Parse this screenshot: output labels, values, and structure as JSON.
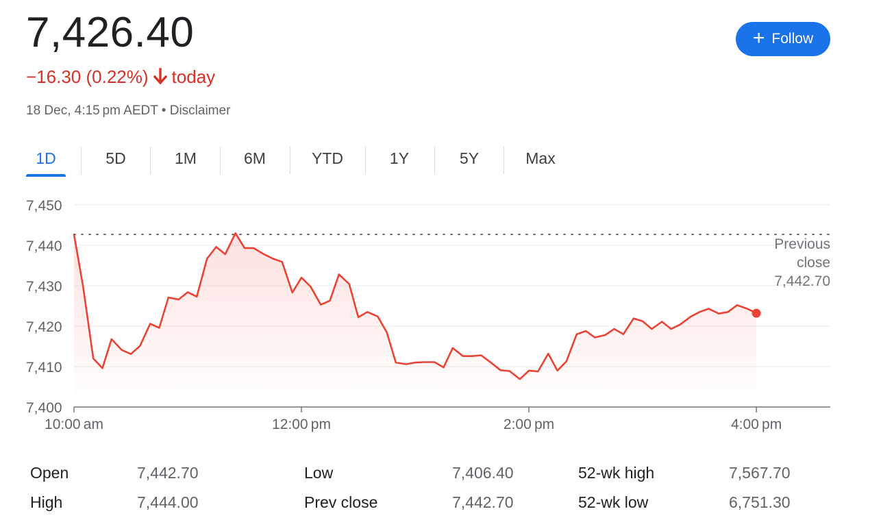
{
  "header": {
    "price": "7,426.40",
    "change": "−16.30 (0.22%)",
    "change_suffix": "today",
    "timestamp": "18 Dec, 4:15 pm AEDT",
    "separator": "•",
    "disclaimer": "Disclaimer",
    "negative_color": "#d93025"
  },
  "follow_button": {
    "label": "Follow",
    "icon": "plus-icon",
    "color": "#1a73e8"
  },
  "tabs": [
    {
      "label": "1D",
      "active": true
    },
    {
      "label": "5D",
      "active": false
    },
    {
      "label": "1M",
      "active": false
    },
    {
      "label": "6M",
      "active": false
    },
    {
      "label": "YTD",
      "active": false
    },
    {
      "label": "1Y",
      "active": false
    },
    {
      "label": "5Y",
      "active": false
    },
    {
      "label": "Max",
      "active": false
    }
  ],
  "chart_data": {
    "type": "area",
    "title": "",
    "xlabel": "",
    "ylabel": "",
    "ylim": [
      7400,
      7450
    ],
    "xlim_hours": [
      10.0,
      16.65
    ],
    "yticks": [
      7400,
      7410,
      7420,
      7430,
      7440,
      7450
    ],
    "ytick_labels": [
      "7,400",
      "7,410",
      "7,420",
      "7,430",
      "7,440",
      "7,450"
    ],
    "xticks": [
      10,
      12,
      14,
      16
    ],
    "xtick_labels": [
      "10:00 am",
      "12:00 pm",
      "2:00 pm",
      "4:00 pm"
    ],
    "grid": true,
    "line_color": "#ea4335",
    "reference": {
      "label_lines": [
        "Previous",
        "close",
        "7,442.70"
      ],
      "value": 7442.7
    },
    "series": [
      {
        "x": [
          10.0,
          10.08,
          10.17,
          10.25,
          10.33,
          10.42,
          10.5,
          10.58,
          10.67,
          10.75,
          10.83,
          10.92,
          11.0,
          11.08,
          11.17,
          11.25,
          11.33,
          11.42,
          11.5,
          11.58,
          11.67,
          11.75,
          11.83,
          11.92,
          12.0,
          12.08,
          12.17,
          12.25,
          12.33,
          12.42,
          12.5,
          12.58,
          12.67,
          12.75,
          12.83,
          12.92,
          13.0,
          13.08,
          13.17,
          13.25,
          13.33,
          13.42,
          13.5,
          13.58,
          13.67,
          13.75,
          13.83,
          13.92,
          14.0,
          14.08,
          14.17,
          14.25,
          14.33,
          14.42,
          14.5,
          14.58,
          14.67,
          14.75,
          14.83,
          14.92,
          15.0,
          15.08,
          15.17,
          15.25,
          15.33,
          15.42,
          15.5,
          15.58,
          15.67,
          15.75,
          15.83,
          15.92,
          16.0
        ],
        "values": [
          7442.7,
          7429.8,
          7412.0,
          7409.6,
          7416.8,
          7414.1,
          7413.1,
          7415.1,
          7420.6,
          7419.6,
          7427.1,
          7426.6,
          7428.4,
          7427.3,
          7436.7,
          7439.6,
          7437.8,
          7443.0,
          7439.3,
          7439.3,
          7437.8,
          7436.7,
          7435.9,
          7428.3,
          7432.0,
          7429.8,
          7425.3,
          7426.3,
          7432.8,
          7430.4,
          7422.2,
          7423.5,
          7422.4,
          7418.5,
          7411.0,
          7410.6,
          7411.0,
          7411.1,
          7411.1,
          7409.8,
          7414.6,
          7412.6,
          7412.6,
          7412.8,
          7410.9,
          7409.1,
          7408.9,
          7406.9,
          7409.0,
          7408.8,
          7413.2,
          7409.0,
          7411.3,
          7418.0,
          7418.8,
          7417.2,
          7417.8,
          7419.3,
          7418.0,
          7421.9,
          7421.2,
          7419.3,
          7421.1,
          7419.3,
          7420.4,
          7422.3,
          7423.5,
          7424.3,
          7423.1,
          7423.5,
          7425.2,
          7424.3,
          7423.2
        ]
      }
    ]
  },
  "stats": [
    {
      "label": "Open",
      "value": "7,442.70"
    },
    {
      "label": "High",
      "value": "7,444.00"
    },
    {
      "label": "Low",
      "value": "7,406.40"
    },
    {
      "label": "Prev close",
      "value": "7,442.70"
    },
    {
      "label": "52-wk high",
      "value": "7,567.70"
    },
    {
      "label": "52-wk low",
      "value": "6,751.30"
    }
  ]
}
